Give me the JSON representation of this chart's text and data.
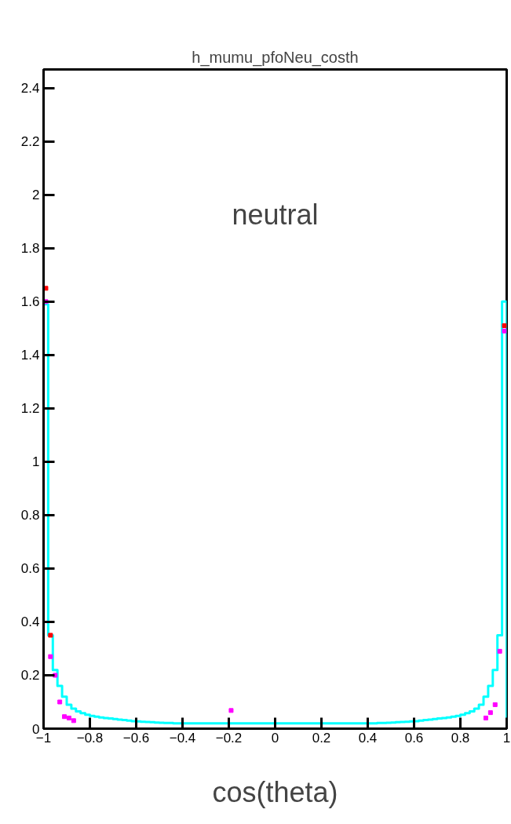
{
  "chart_data": {
    "type": "histogram",
    "title": "h_mumu_pfoNeu_costh",
    "xlabel": "cos(theta)",
    "annotations": [
      "neutral"
    ],
    "bins": [
      -1,
      -0.98,
      -0.96,
      -0.94,
      -0.92,
      -0.9,
      -0.88,
      -0.86,
      -0.84,
      -0.82,
      -0.8,
      -0.78,
      -0.76,
      -0.74,
      -0.72,
      -0.7,
      -0.68,
      -0.66,
      -0.64,
      -0.62,
      -0.6,
      -0.58,
      -0.56,
      -0.54,
      -0.52,
      -0.5,
      -0.48,
      -0.46,
      -0.44,
      -0.42,
      -0.4,
      -0.38,
      -0.36,
      -0.34,
      -0.32,
      -0.3,
      -0.28,
      -0.26,
      -0.24,
      -0.22,
      -0.2,
      -0.18,
      -0.16,
      -0.14,
      -0.12,
      -0.1,
      -0.08,
      -0.06,
      -0.04,
      -0.02,
      0,
      0.02,
      0.04,
      0.06,
      0.08,
      0.1,
      0.12,
      0.14,
      0.16,
      0.18,
      0.2,
      0.22,
      0.24,
      0.26,
      0.28,
      0.3,
      0.32,
      0.34,
      0.36,
      0.38,
      0.4,
      0.42,
      0.44,
      0.46,
      0.48,
      0.5,
      0.52,
      0.54,
      0.56,
      0.58,
      0.6,
      0.62,
      0.64,
      0.66,
      0.68,
      0.7,
      0.72,
      0.74,
      0.76,
      0.78,
      0.8,
      0.82,
      0.84,
      0.86,
      0.88,
      0.9,
      0.92,
      0.94,
      0.96,
      0.98,
      1
    ],
    "values": [
      1.59,
      0.35,
      0.22,
      0.16,
      0.12,
      0.09,
      0.075,
      0.065,
      0.058,
      0.052,
      0.048,
      0.045,
      0.042,
      0.04,
      0.038,
      0.036,
      0.034,
      0.032,
      0.03,
      0.028,
      0.027,
      0.026,
      0.025,
      0.024,
      0.023,
      0.022,
      0.021,
      0.021,
      0.02,
      0.02,
      0.02,
      0.02,
      0.02,
      0.02,
      0.02,
      0.02,
      0.02,
      0.02,
      0.02,
      0.02,
      0.02,
      0.02,
      0.02,
      0.02,
      0.02,
      0.02,
      0.02,
      0.02,
      0.02,
      0.02,
      0.02,
      0.02,
      0.02,
      0.02,
      0.02,
      0.02,
      0.02,
      0.02,
      0.02,
      0.02,
      0.02,
      0.02,
      0.02,
      0.02,
      0.02,
      0.02,
      0.02,
      0.02,
      0.02,
      0.02,
      0.02,
      0.02,
      0.021,
      0.021,
      0.022,
      0.023,
      0.024,
      0.025,
      0.026,
      0.027,
      0.028,
      0.03,
      0.032,
      0.034,
      0.036,
      0.038,
      0.04,
      0.042,
      0.045,
      0.048,
      0.052,
      0.058,
      0.065,
      0.075,
      0.09,
      0.12,
      0.16,
      0.22,
      0.35,
      1.6
    ],
    "color": "#00ffff",
    "series": [
      {
        "type": "scatter",
        "color": "#ff00ff",
        "x": [
          -0.99,
          -0.97,
          -0.95,
          -0.93,
          -0.91,
          -0.89,
          -0.87,
          -0.19,
          0.91,
          0.93,
          0.95,
          0.97,
          0.99
        ],
        "values": [
          1.6,
          0.27,
          0.2,
          0.1,
          0.045,
          0.04,
          0.03,
          0.068,
          0.04,
          0.06,
          0.09,
          0.29,
          1.49
        ]
      },
      {
        "type": "scatter",
        "color": "#ff0000",
        "x": [
          -0.99,
          -0.97,
          0.99
        ],
        "values": [
          1.65,
          0.35,
          1.51
        ]
      }
    ],
    "marker": "square",
    "xlim": [
      -1,
      1
    ],
    "ylim": [
      0,
      2.47
    ],
    "xticks": [
      {
        "value": -1,
        "label": "−1"
      },
      {
        "value": -0.8,
        "label": "−0.8"
      },
      {
        "value": -0.6,
        "label": "−0.6"
      },
      {
        "value": -0.4,
        "label": "−0.4"
      },
      {
        "value": -0.2,
        "label": "−0.2"
      },
      0,
      0.2,
      0.4,
      0.6,
      0.8,
      1
    ],
    "yticks": [
      0,
      0.2,
      0.4,
      0.6,
      0.8,
      1,
      1.2,
      1.4,
      1.6,
      1.8,
      2,
      2.2,
      2.4
    ],
    "grid": false
  }
}
